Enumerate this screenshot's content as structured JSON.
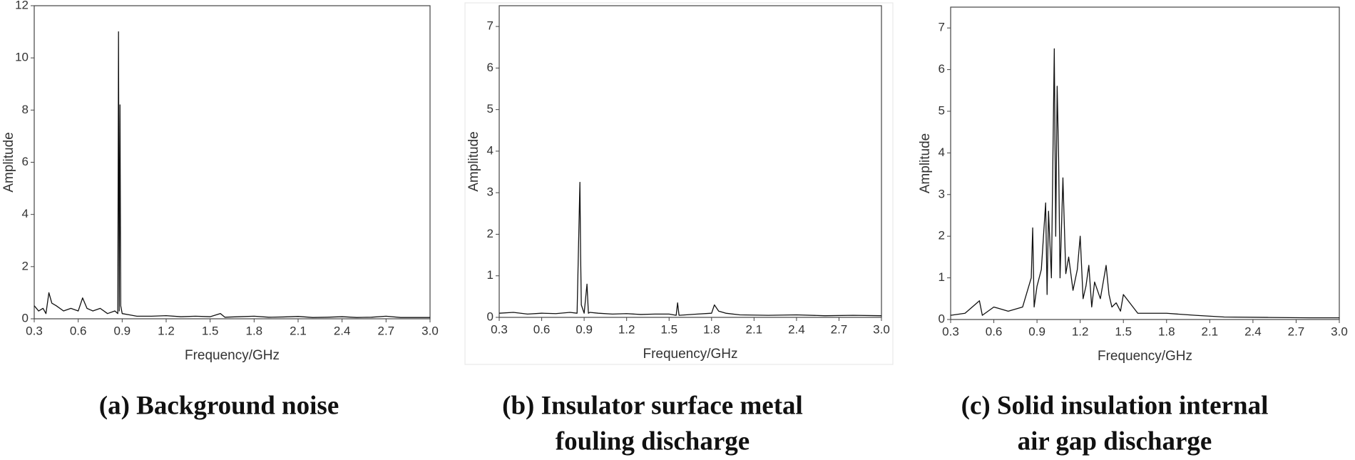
{
  "chart_data": [
    {
      "type": "line",
      "caption": [
        "(a) Background noise"
      ],
      "xlabel": "Frequency/GHz",
      "ylabel": "Amplitude",
      "color": "#111111",
      "xlim": [
        0.3,
        3.0
      ],
      "ylim": [
        0,
        12
      ],
      "xticks": [
        0.3,
        0.6,
        0.9,
        1.2,
        1.5,
        1.8,
        2.1,
        2.4,
        2.7,
        {
          "value": 3,
          "label": "3.0"
        }
      ],
      "yticks": [
        0,
        2,
        4,
        6,
        8,
        10,
        12
      ],
      "x": [
        0.3,
        0.33,
        0.36,
        0.38,
        0.4,
        0.42,
        0.45,
        0.5,
        0.55,
        0.6,
        0.63,
        0.66,
        0.7,
        0.75,
        0.8,
        0.85,
        0.87,
        0.875,
        0.88,
        0.885,
        0.89,
        0.9,
        0.95,
        1.0,
        1.1,
        1.2,
        1.3,
        1.4,
        1.5,
        1.57,
        1.6,
        1.7,
        1.8,
        1.9,
        2.0,
        2.1,
        2.2,
        2.3,
        2.4,
        2.5,
        2.6,
        2.7,
        2.8,
        2.9,
        3.0
      ],
      "values": [
        0.5,
        0.3,
        0.4,
        0.2,
        1.0,
        0.6,
        0.5,
        0.3,
        0.4,
        0.3,
        0.8,
        0.4,
        0.3,
        0.4,
        0.2,
        0.3,
        0.2,
        11,
        0.3,
        8.2,
        0.5,
        0.2,
        0.15,
        0.1,
        0.1,
        0.12,
        0.08,
        0.1,
        0.08,
        0.2,
        0.06,
        0.08,
        0.1,
        0.06,
        0.07,
        0.09,
        0.05,
        0.06,
        0.08,
        0.05,
        0.06,
        0.1,
        0.05,
        0.05,
        0.05
      ]
    },
    {
      "type": "line",
      "caption": [
        "(b) Insulator surface metal",
        "fouling discharge"
      ],
      "xlabel": "Frequency/GHz",
      "ylabel": "Amplitude",
      "color": "#111111",
      "xlim": [
        0.3,
        3.0
      ],
      "ylim": [
        0,
        7.5
      ],
      "xticks": [
        0.3,
        0.6,
        0.9,
        1.2,
        1.5,
        1.8,
        2.1,
        2.4,
        2.7,
        {
          "value": 3,
          "label": "3.0"
        }
      ],
      "yticks": [
        0,
        1,
        2,
        3,
        4,
        5,
        6,
        7
      ],
      "x": [
        0.3,
        0.4,
        0.5,
        0.6,
        0.7,
        0.8,
        0.85,
        0.87,
        0.875,
        0.88,
        0.9,
        0.92,
        0.93,
        0.94,
        1.0,
        1.1,
        1.2,
        1.3,
        1.4,
        1.5,
        1.55,
        1.56,
        1.57,
        1.7,
        1.8,
        1.82,
        1.85,
        1.9,
        2.0,
        2.2,
        2.4,
        2.6,
        2.8,
        3.0
      ],
      "values": [
        0.1,
        0.12,
        0.08,
        0.1,
        0.09,
        0.12,
        0.1,
        3.25,
        1.5,
        0.3,
        0.1,
        0.8,
        0.1,
        0.12,
        0.1,
        0.08,
        0.09,
        0.07,
        0.08,
        0.08,
        0.05,
        0.35,
        0.05,
        0.08,
        0.1,
        0.3,
        0.15,
        0.1,
        0.06,
        0.05,
        0.06,
        0.04,
        0.05,
        0.04
      ]
    },
    {
      "type": "line",
      "caption": [
        "(c) Solid insulation internal",
        "air gap discharge"
      ],
      "xlabel": "Frequency/GHz",
      "ylabel": "Amplitude",
      "color": "#111111",
      "xlim": [
        0.3,
        3.0
      ],
      "ylim": [
        0,
        7.5
      ],
      "xticks": [
        0.3,
        0.6,
        0.9,
        1.2,
        1.5,
        1.8,
        2.1,
        2.4,
        2.7,
        {
          "value": 3,
          "label": "3.0"
        }
      ],
      "yticks": [
        0,
        1,
        2,
        3,
        4,
        5,
        6,
        7
      ],
      "x": [
        0.3,
        0.4,
        0.5,
        0.52,
        0.6,
        0.7,
        0.8,
        0.86,
        0.87,
        0.88,
        0.9,
        0.93,
        0.96,
        0.97,
        0.98,
        1.0,
        1.02,
        1.03,
        1.04,
        1.05,
        1.06,
        1.08,
        1.1,
        1.12,
        1.15,
        1.18,
        1.2,
        1.22,
        1.24,
        1.26,
        1.28,
        1.3,
        1.34,
        1.38,
        1.4,
        1.42,
        1.45,
        1.48,
        1.5,
        1.6,
        1.8,
        2.0,
        2.2,
        2.5,
        2.8,
        3.0
      ],
      "values": [
        0.1,
        0.15,
        0.45,
        0.1,
        0.3,
        0.2,
        0.3,
        1.0,
        2.2,
        0.3,
        0.8,
        1.2,
        2.8,
        0.6,
        2.6,
        1.0,
        6.5,
        2.0,
        5.6,
        3.9,
        1.0,
        3.4,
        1.1,
        1.5,
        0.7,
        1.2,
        2.0,
        0.5,
        0.8,
        1.3,
        0.3,
        0.9,
        0.5,
        1.3,
        0.6,
        0.3,
        0.4,
        0.2,
        0.6,
        0.15,
        0.15,
        0.1,
        0.06,
        0.05,
        0.04,
        0.04
      ]
    }
  ]
}
